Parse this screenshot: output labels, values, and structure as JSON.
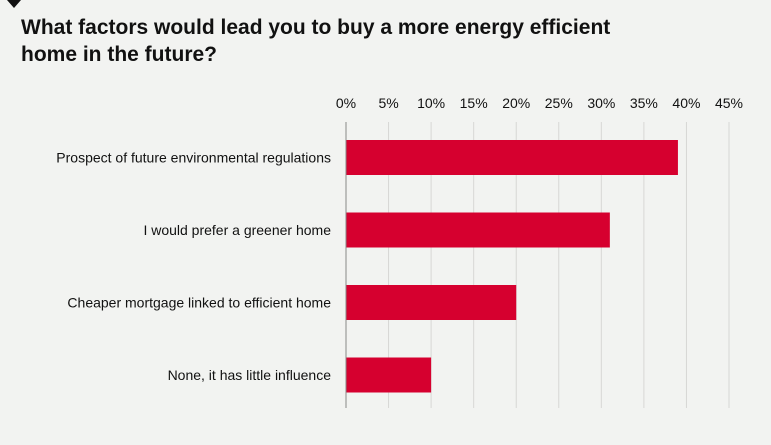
{
  "chart_data": {
    "type": "bar",
    "orientation": "horizontal",
    "title": "What factors would lead you to buy a more energy efficient home in the future?",
    "categories": [
      "Prospect of future environmental regulations",
      "I would prefer a greener home",
      "Cheaper mortgage linked to efficient home",
      "None, it has little influence"
    ],
    "values": [
      39,
      31,
      20,
      10
    ],
    "xlim": [
      0,
      45
    ],
    "xticks": [
      "0%",
      "5%",
      "10%",
      "15%",
      "20%",
      "25%",
      "30%",
      "35%",
      "40%",
      "45%"
    ],
    "tick_axis_position": "top",
    "grid": true,
    "legend": "none",
    "bar_color": "#d6002f",
    "grid_color": "#d7d7d5",
    "axis_color": "#888888"
  }
}
